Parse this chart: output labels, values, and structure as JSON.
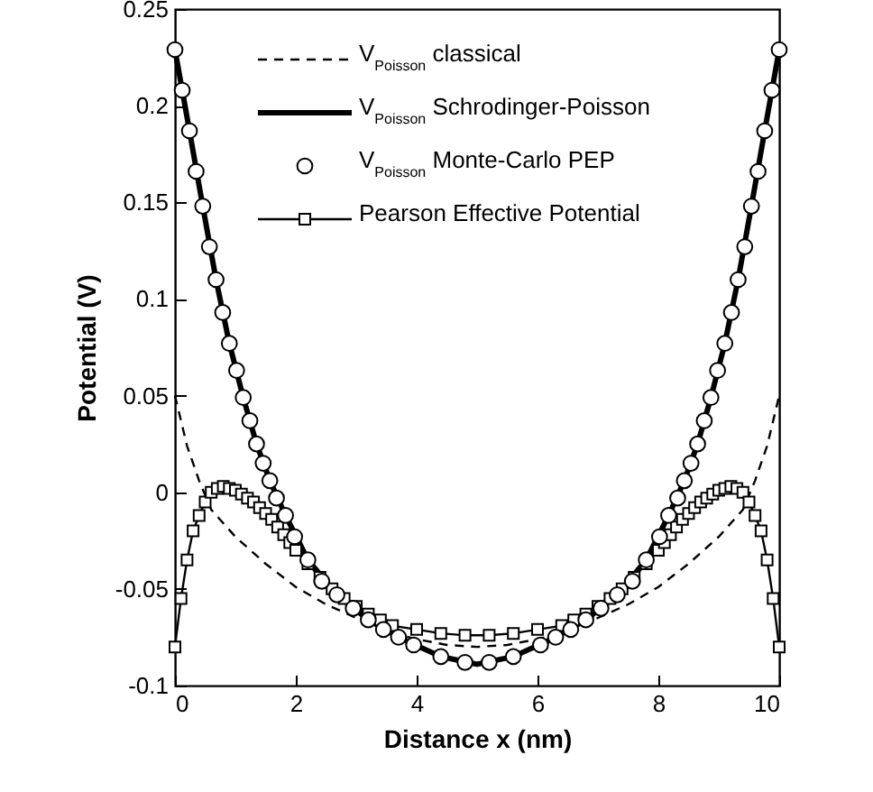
{
  "chart_data": {
    "type": "line",
    "xlabel": "Distance x (nm)",
    "ylabel": "Potential (V)",
    "xlim": [
      0,
      10
    ],
    "xticks": [
      0,
      2,
      4,
      6,
      8,
      10
    ],
    "ylim": [
      -0.1,
      0.25
    ],
    "yticks": [
      -0.1,
      -0.05,
      0,
      0.05,
      0.1,
      0.15,
      0.2,
      0.25
    ],
    "grid": false,
    "legend": "top left",
    "series": [
      {
        "name": "V$_{Poisson}$ classical",
        "color": "#000000",
        "line_style": "dashed",
        "marker": "none",
        "x": [
          0,
          0.2,
          0.4,
          0.6,
          1.0,
          1.5,
          2,
          2.5,
          3,
          3.5,
          4,
          4.5,
          5,
          5.5,
          6,
          6.5,
          7,
          7.5,
          8,
          8.5,
          9,
          9.4,
          9.6,
          9.8,
          10
        ],
        "values": [
          0.05,
          0.024,
          0.006,
          -0.009,
          -0.023,
          -0.037,
          -0.049,
          -0.058,
          -0.065,
          -0.072,
          -0.076,
          -0.079,
          -0.08,
          -0.079,
          -0.076,
          -0.072,
          -0.065,
          -0.058,
          -0.049,
          -0.037,
          -0.023,
          -0.009,
          0.006,
          0.024,
          0.05
        ]
      },
      {
        "name": "V$_{Poisson}$ Schrodinger-Poisson",
        "color": "#000000",
        "line_style": "solid",
        "marker": "none",
        "x": [
          0,
          0.24,
          0.46,
          0.68,
          0.9,
          1.13,
          1.35,
          1.57,
          1.83,
          2.2,
          2.68,
          3.2,
          3.7,
          4.4,
          5,
          5.6,
          6.3,
          6.8,
          7.32,
          7.8,
          8.17,
          8.43,
          8.65,
          8.87,
          9.1,
          9.32,
          9.54,
          9.76,
          10
        ],
        "values": [
          0.229,
          0.187,
          0.148,
          0.11,
          0.077,
          0.049,
          0.025,
          0.006,
          -0.012,
          -0.035,
          -0.053,
          -0.066,
          -0.075,
          -0.085,
          -0.089,
          -0.085,
          -0.075,
          -0.066,
          -0.053,
          -0.035,
          -0.012,
          0.006,
          0.025,
          0.049,
          0.077,
          0.11,
          0.148,
          0.187,
          0.229
        ]
      },
      {
        "name": "V$_{Poisson}$ Monte-Carlo PEP",
        "type": "scatter",
        "color": "#000000",
        "marker": "circle",
        "x": [
          0,
          0.12,
          0.24,
          0.35,
          0.46,
          0.57,
          0.68,
          0.79,
          0.9,
          1.02,
          1.13,
          1.24,
          1.35,
          1.46,
          1.57,
          1.68,
          1.83,
          1.98,
          2.2,
          2.43,
          2.68,
          2.95,
          3.2,
          3.45,
          3.7,
          3.95,
          4.4,
          4.8,
          5.2,
          5.6,
          6.05,
          6.3,
          6.55,
          6.8,
          7.05,
          7.32,
          7.57,
          7.8,
          8.02,
          8.17,
          8.32,
          8.43,
          8.54,
          8.65,
          8.76,
          8.87,
          8.98,
          9.1,
          9.21,
          9.32,
          9.43,
          9.54,
          9.65,
          9.76,
          9.88,
          10
        ],
        "values": [
          0.229,
          0.208,
          0.187,
          0.166,
          0.148,
          0.127,
          0.11,
          0.093,
          0.077,
          0.063,
          0.049,
          0.037,
          0.025,
          0.015,
          0.006,
          -0.003,
          -0.012,
          -0.023,
          -0.035,
          -0.046,
          -0.053,
          -0.06,
          -0.066,
          -0.071,
          -0.075,
          -0.079,
          -0.085,
          -0.088,
          -0.088,
          -0.085,
          -0.079,
          -0.075,
          -0.071,
          -0.066,
          -0.06,
          -0.053,
          -0.046,
          -0.035,
          -0.023,
          -0.012,
          -0.003,
          0.006,
          0.015,
          0.025,
          0.037,
          0.049,
          0.063,
          0.077,
          0.093,
          0.11,
          0.127,
          0.148,
          0.166,
          0.187,
          0.208,
          0.229
        ]
      },
      {
        "name": "Pearson Effective Potential",
        "color": "#000000",
        "line_style": "solid",
        "marker": "square",
        "x": [
          0,
          0.1,
          0.2,
          0.3,
          0.4,
          0.5,
          0.6,
          0.7,
          0.8,
          0.9,
          1.0,
          1.1,
          1.2,
          1.3,
          1.4,
          1.5,
          1.6,
          1.7,
          1.8,
          1.9,
          2.0,
          2.2,
          2.4,
          2.6,
          2.8,
          3.0,
          3.2,
          3.4,
          3.6,
          4.0,
          4.4,
          4.8,
          5.2,
          5.6,
          6.0,
          6.4,
          6.6,
          6.8,
          7.0,
          7.2,
          7.4,
          7.6,
          7.8,
          8.0,
          8.1,
          8.2,
          8.3,
          8.4,
          8.5,
          8.6,
          8.7,
          8.8,
          8.9,
          9.0,
          9.1,
          9.2,
          9.3,
          9.4,
          9.5,
          9.6,
          9.7,
          9.8,
          9.9,
          10
        ],
        "values": [
          -0.08,
          -0.055,
          -0.035,
          -0.02,
          -0.012,
          -0.005,
          0,
          0.002,
          0.003,
          0.002,
          0.001,
          -0.001,
          -0.003,
          -0.005,
          -0.008,
          -0.011,
          -0.014,
          -0.018,
          -0.022,
          -0.026,
          -0.03,
          -0.037,
          -0.044,
          -0.05,
          -0.055,
          -0.059,
          -0.063,
          -0.066,
          -0.069,
          -0.071,
          -0.073,
          -0.074,
          -0.074,
          -0.073,
          -0.071,
          -0.069,
          -0.066,
          -0.063,
          -0.059,
          -0.055,
          -0.05,
          -0.044,
          -0.037,
          -0.03,
          -0.026,
          -0.022,
          -0.018,
          -0.014,
          -0.011,
          -0.008,
          -0.005,
          -0.003,
          -0.001,
          0.001,
          0.002,
          0.003,
          0.002,
          0,
          -0.005,
          -0.012,
          -0.02,
          -0.035,
          -0.055,
          -0.08
        ]
      }
    ]
  }
}
